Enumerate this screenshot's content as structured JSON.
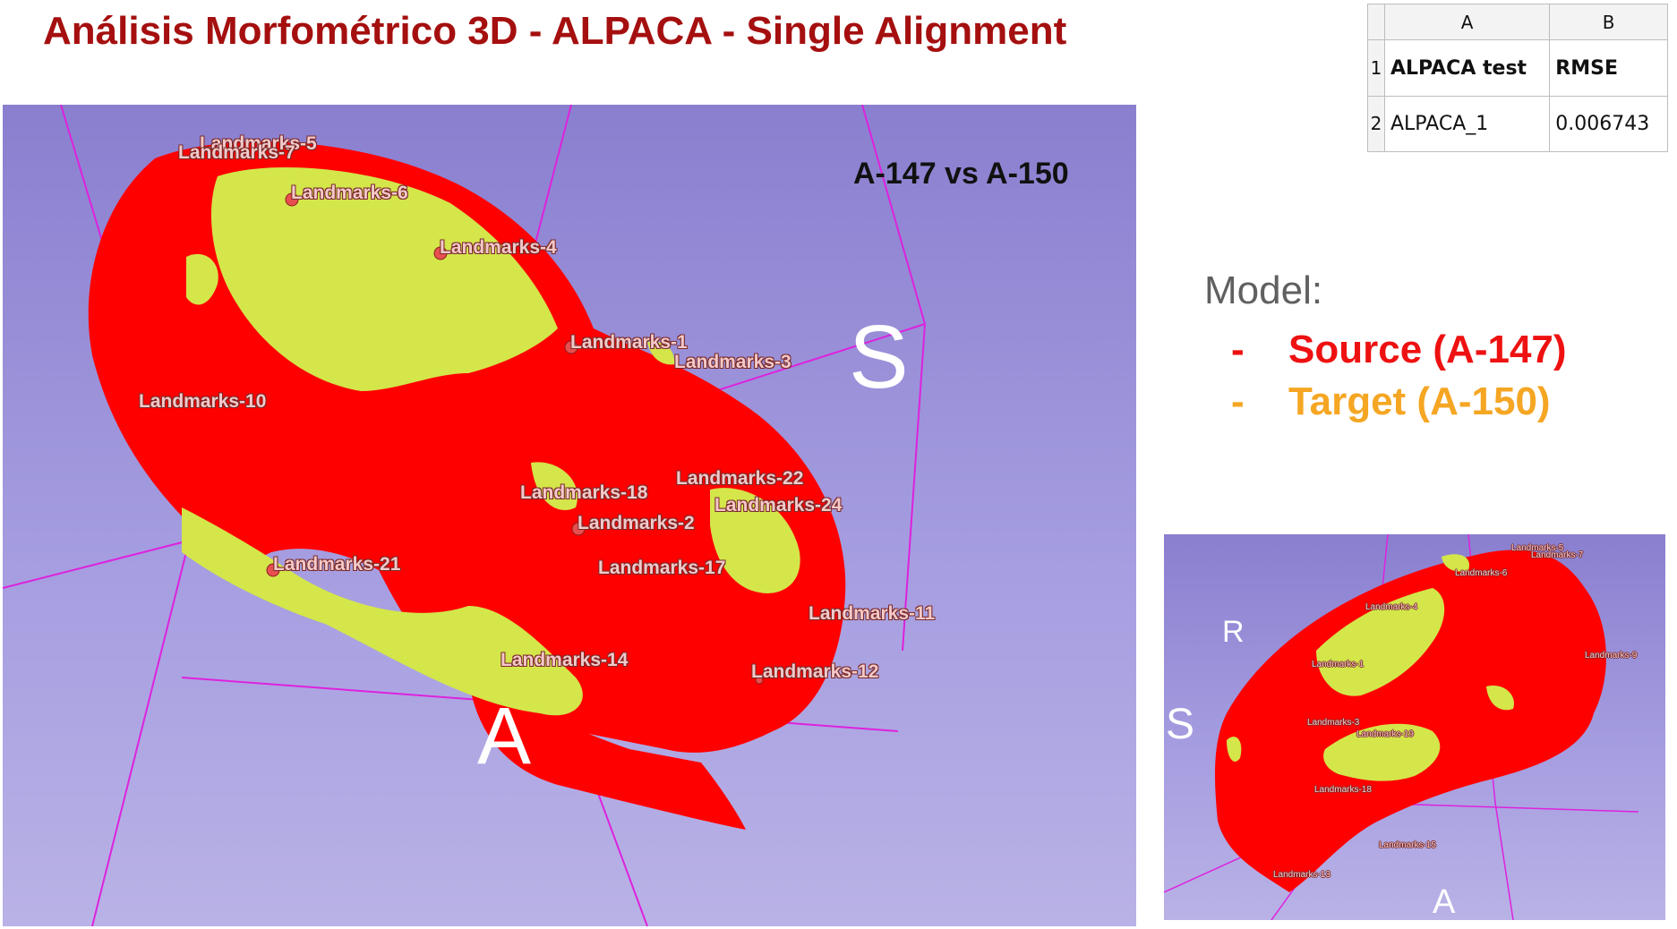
{
  "title": "Análisis Morfométrico 3D - ALPACA - Single Alignment",
  "main_view": {
    "comparison": "A-147 vs A-150",
    "axis_s": "S",
    "axis_a": "A",
    "landmarks": [
      "Landmarks-5",
      "Landmarks-7",
      "Landmarks-6",
      "Landmarks-4",
      "Landmarks-1",
      "Landmarks-3",
      "Landmarks-10",
      "Landmarks-22",
      "Landmarks-24",
      "Landmarks-18",
      "Landmarks-2",
      "Landmarks-21",
      "Landmarks-17",
      "Landmarks-11",
      "Landmarks-14",
      "Landmarks-12"
    ]
  },
  "mini_view": {
    "axis_r": "R",
    "axis_s": "S",
    "axis_a": "A",
    "landmarks": [
      "Landmarks-5",
      "Landmarks-7",
      "Landmarks-6",
      "Landmarks-4",
      "Landmarks-9",
      "Landmarks-1",
      "Landmarks-3",
      "Landmarks-19",
      "Landmarks-18",
      "Landmarks-15",
      "Landmarks-13"
    ]
  },
  "spreadsheet": {
    "columns": [
      "A",
      "B"
    ],
    "rows": [
      {
        "num": "1",
        "a": "ALPACA test",
        "b": "RMSE"
      },
      {
        "num": "2",
        "a": "ALPACA_1",
        "b": "0.006743"
      }
    ]
  },
  "legend": {
    "label": "Model:",
    "dash": "-",
    "source": "Source (A-147)",
    "target": "Target (A-150)",
    "source_color": "#ee1111",
    "target_color": "#f5a623"
  },
  "colors": {
    "mesh_source": "#ff0000",
    "mesh_target": "#d4e64a",
    "bounding_box": "#dd22dd"
  }
}
